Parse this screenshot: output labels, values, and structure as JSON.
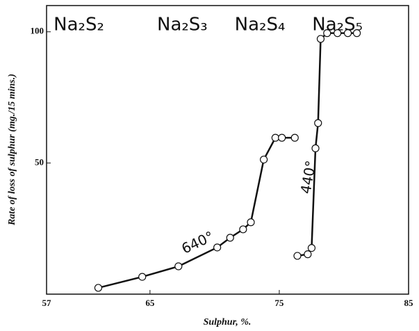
{
  "chart_data": {
    "type": "scatter-line",
    "xlabel": "Sulphur, %.",
    "ylabel": "Rate of loss of sulphur (mg./15 mins.)",
    "xlim": [
      57,
      85
    ],
    "ylim": [
      0,
      110
    ],
    "xticks": [
      57,
      65,
      75,
      85
    ],
    "yticks": [
      50,
      100
    ],
    "compounds": [
      {
        "label": "Na₂S₂",
        "x": 59.5
      },
      {
        "label": "Na₂S₃",
        "x": 67.5
      },
      {
        "label": "Na₂S₄",
        "x": 73.5
      },
      {
        "label": "Na₂S₅",
        "x": 79.5
      }
    ],
    "series": [
      {
        "name": "640°",
        "color": "#111111",
        "x": [
          61.0,
          64.4,
          67.2,
          70.2,
          71.2,
          72.2,
          72.8,
          73.8,
          74.7,
          75.2,
          76.2
        ],
        "values": [
          2.4,
          6.6,
          10.6,
          17.8,
          21.5,
          24.7,
          27.4,
          51.3,
          59.6,
          59.6,
          59.6
        ]
      },
      {
        "name": "440°",
        "color": "#111111",
        "x": [
          76.4,
          77.2,
          77.5,
          77.8,
          78.0,
          78.2,
          78.7,
          79.5,
          80.3,
          81.0
        ],
        "values": [
          14.6,
          15.2,
          17.6,
          55.6,
          65.2,
          97.3,
          99.5,
          99.5,
          99.5,
          99.5
        ]
      }
    ]
  }
}
